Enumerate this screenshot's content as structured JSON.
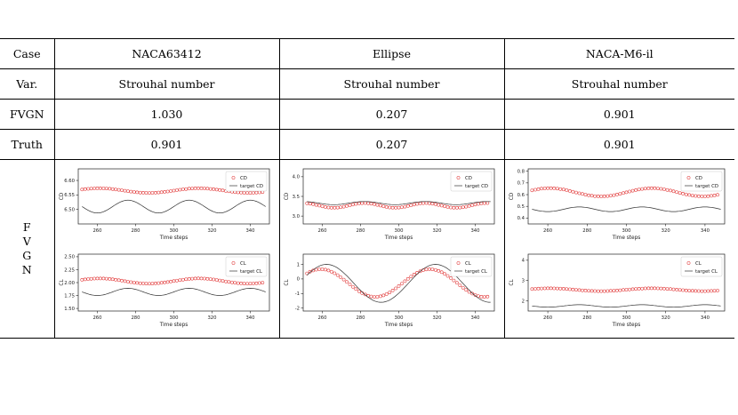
{
  "table": {
    "header": [
      "Case",
      "NACA63412",
      "Ellipse",
      "NACA-M6-il"
    ],
    "rows": [
      {
        "label": "Var.",
        "values": [
          "Strouhal number",
          "Strouhal number",
          "Strouhal number"
        ]
      },
      {
        "label": "FVGN",
        "values": [
          "1.030",
          "0.207",
          "0.901"
        ]
      },
      {
        "label": "Truth",
        "values": [
          "0.901",
          "0.207",
          "0.901"
        ]
      }
    ],
    "plot_row_label": [
      "F",
      "V",
      "G",
      "N"
    ]
  },
  "chart_data": [
    {
      "type": "scatter",
      "panel": "NACA63412-CD",
      "xlabel": "Time steps",
      "ylabel": "CD",
      "xlim": [
        250,
        350
      ],
      "ylim": [
        6.45,
        6.64
      ],
      "xticks": [
        260,
        280,
        300,
        320,
        340
      ],
      "yticks": [
        "6.50",
        "6.55",
        "6.60"
      ],
      "legend": "top-right",
      "series": [
        {
          "name": "CD",
          "marker": "circle",
          "color": "#e03030",
          "mean": 6.565,
          "amp": 0.008,
          "period": 52,
          "phase": 300
        },
        {
          "name": "target CD",
          "marker": "line",
          "color": "#333333",
          "mean": 6.51,
          "amp": 0.022,
          "period": 32,
          "phase": 300
        }
      ]
    },
    {
      "type": "scatter",
      "panel": "NACA63412-CL",
      "xlabel": "Time steps",
      "ylabel": "CL",
      "xlim": [
        250,
        350
      ],
      "ylim": [
        1.45,
        2.55
      ],
      "xticks": [
        260,
        280,
        300,
        320,
        340
      ],
      "yticks": [
        "1.50",
        "1.75",
        "2.00",
        "2.25",
        "2.50"
      ],
      "legend": "top-right",
      "series": [
        {
          "name": "CL",
          "marker": "circle",
          "color": "#e03030",
          "mean": 2.03,
          "amp": 0.05,
          "period": 52,
          "phase": 300
        },
        {
          "name": "target CL",
          "marker": "line",
          "color": "#333333",
          "mean": 1.82,
          "amp": 0.07,
          "period": 32,
          "phase": 300
        }
      ]
    },
    {
      "type": "scatter",
      "panel": "Ellipse-CD",
      "xlabel": "Time steps",
      "ylabel": "CD",
      "xlim": [
        250,
        350
      ],
      "ylim": [
        2.8,
        4.2
      ],
      "xticks": [
        260,
        280,
        300,
        320,
        340
      ],
      "yticks": [
        "3.0",
        "3.5",
        "4.0"
      ],
      "legend": "top-right",
      "series": [
        {
          "name": "CD",
          "marker": "circle",
          "color": "#e03030",
          "mean": 3.27,
          "amp": 0.06,
          "period": 32,
          "phase": 306
        },
        {
          "name": "target CD",
          "marker": "line",
          "color": "#333333",
          "mean": 3.33,
          "amp": 0.04,
          "period": 32,
          "phase": 306
        }
      ]
    },
    {
      "type": "scatter",
      "panel": "Ellipse-CL",
      "xlabel": "Time steps",
      "ylabel": "CL",
      "xlim": [
        250,
        350
      ],
      "ylim": [
        -2.2,
        1.7
      ],
      "xticks": [
        260,
        280,
        300,
        320,
        340
      ],
      "yticks": [
        "-2",
        "-1",
        "0",
        "1"
      ],
      "legend": "top-right",
      "series": [
        {
          "name": "CL",
          "marker": "circle",
          "color": "#e03030",
          "mean": -0.28,
          "amp": 0.95,
          "period": 57,
          "phase": 302
        },
        {
          "name": "target CL",
          "marker": "line",
          "color": "#333333",
          "mean": -0.3,
          "amp": 1.3,
          "period": 57,
          "phase": 305
        }
      ]
    },
    {
      "type": "scatter",
      "panel": "NACA-M6-il-CD",
      "xlabel": "Time steps",
      "ylabel": "CD",
      "xlim": [
        250,
        350
      ],
      "ylim": [
        0.35,
        0.82
      ],
      "xticks": [
        260,
        280,
        300,
        320,
        340
      ],
      "yticks": [
        "0.4",
        "0.5",
        "0.6",
        "0.7",
        "0.8"
      ],
      "legend": "top-right",
      "series": [
        {
          "name": "CD",
          "marker": "circle",
          "color": "#e03030",
          "mean": 0.62,
          "amp": 0.035,
          "period": 52,
          "phase": 300
        },
        {
          "name": "target CD",
          "marker": "line",
          "color": "#333333",
          "mean": 0.475,
          "amp": 0.02,
          "period": 32,
          "phase": 300
        }
      ]
    },
    {
      "type": "scatter",
      "panel": "NACA-M6-il-CL",
      "xlabel": "Time steps",
      "ylabel": "CL",
      "xlim": [
        250,
        350
      ],
      "ylim": [
        1.5,
        4.3
      ],
      "xticks": [
        260,
        280,
        300,
        320,
        340
      ],
      "yticks": [
        "2",
        "3",
        "4"
      ],
      "legend": "top-right",
      "series": [
        {
          "name": "CL",
          "marker": "circle",
          "color": "#e03030",
          "mean": 2.55,
          "amp": 0.07,
          "period": 52,
          "phase": 300
        },
        {
          "name": "target CL",
          "marker": "line",
          "color": "#333333",
          "mean": 1.75,
          "amp": 0.06,
          "period": 32,
          "phase": 300
        }
      ]
    }
  ]
}
